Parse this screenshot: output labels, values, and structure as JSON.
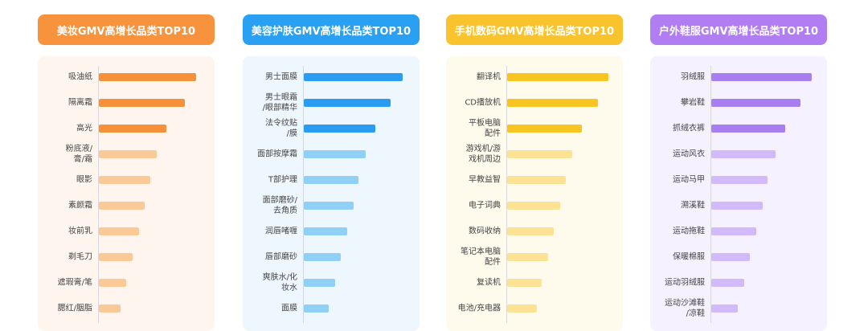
{
  "chart_data": [
    {
      "type": "bar",
      "title": "美妆GMV高增长品类TOP10",
      "color": "#f6933c",
      "background": "#fef6ee",
      "categories": [
        "吸油纸",
        "隔离霜",
        "高光",
        "粉底液/\n膏/霜",
        "眼影",
        "素颜霜",
        "妆前乳",
        "剃毛刀",
        "遮瑕膏/笔",
        "腮红/胭脂"
      ],
      "values": [
        121,
        107,
        84,
        72,
        64,
        57,
        50,
        42,
        34,
        27
      ],
      "colors": [
        "#f6913a",
        "#f6913a",
        "#f6913a",
        "#fbc898",
        "#fbc898",
        "#fbc898",
        "#fbc898",
        "#fbc898",
        "#fbc898",
        "#fbc898"
      ]
    },
    {
      "type": "bar",
      "title": "美容护肤GMV高增长品类TOP10",
      "color": "#29a0f2",
      "background": "#eef7fe",
      "categories": [
        "男士面膜",
        "男士眼霜\n/眼部精华",
        "法令纹贴\n/膜",
        "面部按摩霜",
        "T部护理",
        "面部磨砂/\n去角质",
        "润唇啫喱",
        "唇部磨砂",
        "爽肤水/化\n妆水",
        "面膜"
      ],
      "values": [
        123,
        108,
        89,
        77,
        68,
        62,
        54,
        46,
        39,
        31
      ],
      "colors": [
        "#2a9df2",
        "#2a9df2",
        "#2a9df2",
        "#90cff6",
        "#90cff6",
        "#90cff6",
        "#90cff6",
        "#90cff6",
        "#90cff6",
        "#90cff6"
      ]
    },
    {
      "type": "bar",
      "title": "手机数码GMV高增长品类TOP10",
      "color": "#f8c32c",
      "background": "#fefaec",
      "categories": [
        "翻译机",
        "CD播放机",
        "平板电脑\n配件",
        "游戏机/游\n戏机周边",
        "早教益智",
        "电子词典",
        "数码收纳",
        "笔记本电脑\n配件",
        "复读机",
        "电池/充电器"
      ],
      "values": [
        126,
        113,
        93,
        81,
        73,
        66,
        58,
        51,
        43,
        37
      ],
      "colors": [
        "#f8c522",
        "#f8c522",
        "#f8c522",
        "#fde294",
        "#fde294",
        "#fde294",
        "#fde294",
        "#fde294",
        "#fde294",
        "#fde294"
      ]
    },
    {
      "type": "bar",
      "title": "户外鞋服GMV高增长品类TOP10",
      "color": "#b07ef2",
      "background": "#f6f1fe",
      "categories": [
        "羽绒服",
        "攀岩鞋",
        "抓绒衣裤",
        "运动风衣",
        "运动马甲",
        "溯溪鞋",
        "运动拖鞋",
        "保暖棉服",
        "运动羽绒服",
        "运动沙滩鞋\n/凉鞋"
      ],
      "values": [
        125,
        111,
        92,
        80,
        70,
        64,
        56,
        48,
        41,
        33
      ],
      "colors": [
        "#a97ef0",
        "#a97ef0",
        "#a97ef0",
        "#d2b9f7",
        "#d2b9f7",
        "#d2b9f7",
        "#d2b9f7",
        "#d2b9f7",
        "#d2b9f7",
        "#d2b9f7"
      ]
    }
  ]
}
